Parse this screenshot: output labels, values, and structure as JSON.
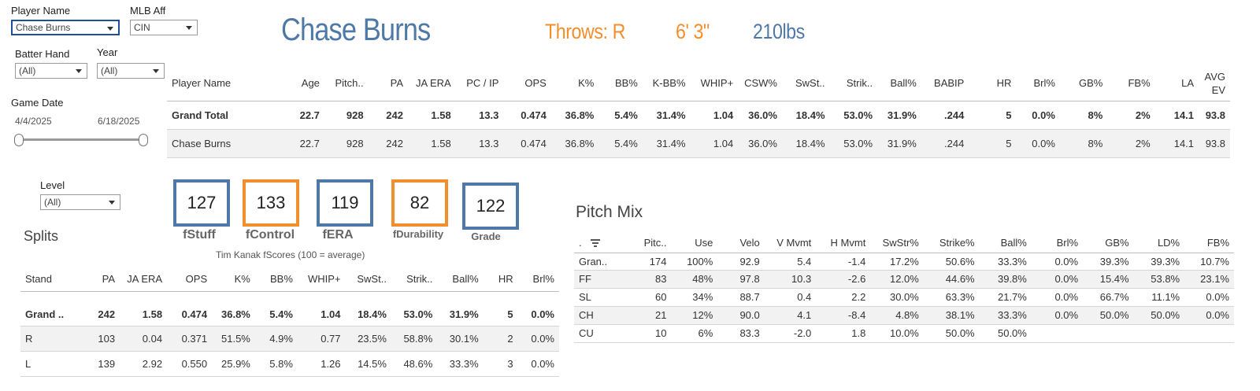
{
  "filters": {
    "player_name": {
      "label": "Player Name",
      "value": "Chase Burns"
    },
    "mlb_aff": {
      "label": "MLB Aff",
      "value": "CIN"
    },
    "batter_hand": {
      "label": "Batter Hand",
      "value": "(All)"
    },
    "year": {
      "label": "Year",
      "value": "(All)"
    },
    "game_date": {
      "label": "Game Date",
      "start": "4/4/2025",
      "end": "6/18/2025"
    },
    "level": {
      "label": "Level",
      "value": "(All)"
    }
  },
  "header": {
    "name": "Chase Burns",
    "throws": "Throws: R",
    "height": "6' 3\"",
    "weight": "210lbs"
  },
  "summary_table": {
    "columns": [
      "Player Name",
      "Age",
      "Pitch..",
      "PA",
      "JA ERA",
      "PC / IP",
      "OPS",
      "K%",
      "BB%",
      "K-BB%",
      "WHIP+",
      "CSW%",
      "SwSt..",
      "Strik..",
      "Ball%",
      "BABIP",
      "HR",
      "Brl%",
      "GB%",
      "FB%",
      "LA",
      "AVG EV"
    ],
    "rows": [
      [
        "Grand Total",
        "22.7",
        "928",
        "242",
        "1.58",
        "13.3",
        "0.474",
        "36.8%",
        "5.4%",
        "31.4%",
        "1.04",
        "36.0%",
        "18.4%",
        "53.0%",
        "31.9%",
        ".244",
        "5",
        "0.0%",
        "8%",
        "2%",
        "14.1",
        "93.8"
      ],
      [
        "Chase Burns",
        "22.7",
        "928",
        "242",
        "1.58",
        "13.3",
        "0.474",
        "36.8%",
        "5.4%",
        "31.4%",
        "1.04",
        "36.0%",
        "18.4%",
        "53.0%",
        "31.9%",
        ".244",
        "5",
        "0.0%",
        "8%",
        "2%",
        "14.1",
        "93.8"
      ]
    ]
  },
  "fscores": {
    "items": [
      {
        "value": "127",
        "label": "fStuff",
        "color": "#4e79a7"
      },
      {
        "value": "133",
        "label": "fControl",
        "color": "#f28e2b"
      },
      {
        "value": "119",
        "label": "fERA",
        "color": "#4e79a7"
      },
      {
        "value": "82",
        "label": "fDurability",
        "color": "#f28e2b"
      },
      {
        "value": "122",
        "label": "Grade",
        "color": "#4e79a7"
      }
    ],
    "caption": "Tim Kanak fScores (100 = average)"
  },
  "splits": {
    "title": "Splits",
    "columns": [
      "Stand",
      "PA",
      "JA ERA",
      "OPS",
      "K%",
      "BB%",
      "WHIP+",
      "SwSt..",
      "Strik..",
      "Ball%",
      "HR",
      "Brl%"
    ],
    "rows": [
      [
        "Grand ..",
        "242",
        "1.58",
        "0.474",
        "36.8%",
        "5.4%",
        "1.04",
        "18.4%",
        "53.0%",
        "31.9%",
        "5",
        "0.0%"
      ],
      [
        "R",
        "103",
        "0.04",
        "0.371",
        "51.5%",
        "4.9%",
        "0.77",
        "23.5%",
        "58.8%",
        "30.1%",
        "2",
        "0.0%"
      ],
      [
        "L",
        "139",
        "2.92",
        "0.550",
        "25.9%",
        "5.8%",
        "1.26",
        "14.5%",
        "48.6%",
        "33.3%",
        "3",
        "0.0%"
      ]
    ]
  },
  "pitch_mix": {
    "title": "Pitch Mix",
    "columns": [
      ".",
      "Pitc..",
      "Use",
      "Velo",
      "V Mvmt",
      "H Mvmt",
      "SwStr%",
      "Strike%",
      "Ball%",
      "Brl%",
      "GB%",
      "LD%",
      "FB%"
    ],
    "rows": [
      [
        "Gran..",
        "174",
        "100%",
        "92.9",
        "5.4",
        "-1.4",
        "17.2%",
        "50.6%",
        "33.3%",
        "0.0%",
        "39.3%",
        "39.3%",
        "10.7%"
      ],
      [
        "FF",
        "83",
        "48%",
        "97.8",
        "10.3",
        "-2.6",
        "12.0%",
        "44.6%",
        "39.8%",
        "0.0%",
        "15.4%",
        "53.8%",
        "23.1%"
      ],
      [
        "SL",
        "60",
        "34%",
        "88.7",
        "0.4",
        "2.2",
        "30.0%",
        "63.3%",
        "21.7%",
        "0.0%",
        "66.7%",
        "11.1%",
        "0.0%"
      ],
      [
        "CH",
        "21",
        "12%",
        "90.0",
        "4.1",
        "-8.4",
        "4.8%",
        "38.1%",
        "33.3%",
        "0.0%",
        "50.0%",
        "50.0%",
        "0.0%"
      ],
      [
        "CU",
        "10",
        "6%",
        "83.3",
        "-2.0",
        "1.8",
        "10.0%",
        "50.0%",
        "50.0%",
        "",
        "",
        "",
        ""
      ]
    ]
  }
}
